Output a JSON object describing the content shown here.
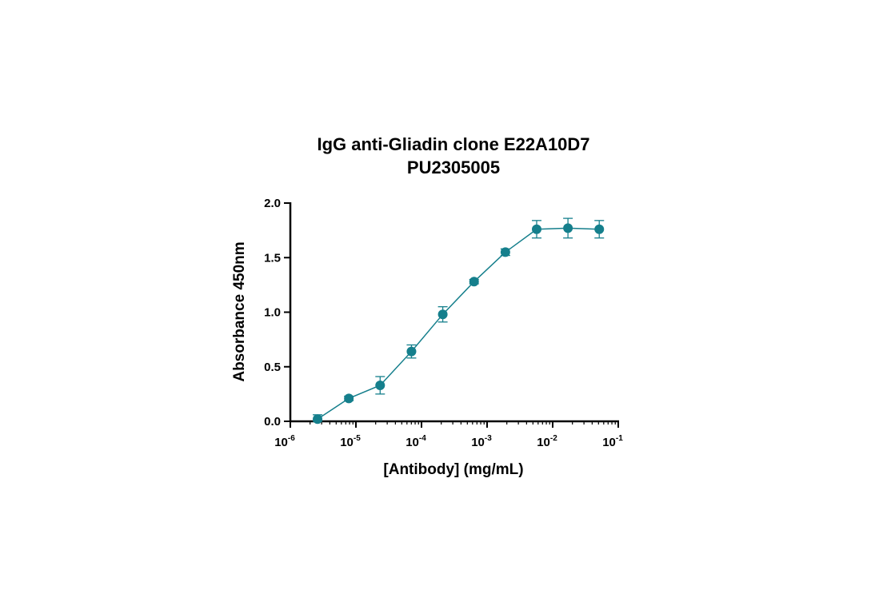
{
  "chart_data": {
    "type": "scatter",
    "title": "IgG anti-Gliadin clone E22A10D7",
    "subtitle": "PU2305005",
    "xlabel": "[Antibody] (mg/mL)",
    "ylabel": "Absorbance 450nm",
    "x_scale": "log",
    "xlim": [
      1e-06,
      0.1
    ],
    "ylim": [
      0,
      2.0
    ],
    "x_ticks": [
      {
        "value": 1e-06,
        "base": "10",
        "exp": "-6"
      },
      {
        "value": 1e-05,
        "base": "10",
        "exp": "-5"
      },
      {
        "value": 0.0001,
        "base": "10",
        "exp": "-4"
      },
      {
        "value": 0.001,
        "base": "10",
        "exp": "-3"
      },
      {
        "value": 0.01,
        "base": "10",
        "exp": "-2"
      },
      {
        "value": 0.1,
        "base": "10",
        "exp": "-1"
      }
    ],
    "y_ticks": [
      {
        "value": 0.0,
        "label": "0.0"
      },
      {
        "value": 0.5,
        "label": "0.5"
      },
      {
        "value": 1.0,
        "label": "1.0"
      },
      {
        "value": 1.5,
        "label": "1.5"
      },
      {
        "value": 2.0,
        "label": "2.0"
      }
    ],
    "grid": false,
    "series": [
      {
        "color": "#157f8c",
        "x": [
          2.6e-06,
          7.8e-06,
          2.34e-05,
          7.03e-05,
          0.000211,
          0.000633,
          0.0019,
          0.0057,
          0.0171,
          0.0513
        ],
        "y": [
          0.02,
          0.21,
          0.33,
          0.64,
          0.98,
          1.28,
          1.55,
          1.76,
          1.77,
          1.76
        ],
        "error": [
          0.04,
          0.02,
          0.08,
          0.06,
          0.07,
          0.02,
          0.03,
          0.08,
          0.09,
          0.08
        ]
      }
    ]
  }
}
